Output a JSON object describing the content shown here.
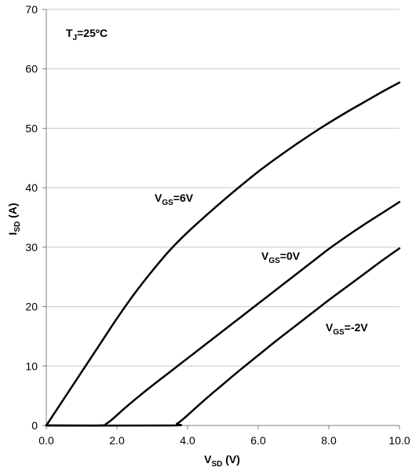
{
  "chart_data": {
    "type": "line",
    "xlabel": {
      "main": "V",
      "sub": "SD",
      "rest": " (V)"
    },
    "ylabel": {
      "main": "I",
      "sub": "SD",
      "rest": " (A)"
    },
    "xlim": [
      0,
      10
    ],
    "ylim": [
      0,
      70
    ],
    "x_ticks": [
      0,
      2,
      4,
      6,
      8,
      10
    ],
    "x_tick_labels": [
      "0.0",
      "2.0",
      "4.0",
      "6.0",
      "8.0",
      "10.0"
    ],
    "y_ticks": [
      0,
      10,
      20,
      30,
      40,
      50,
      60,
      70
    ],
    "y_tick_labels": [
      "0",
      "10",
      "20",
      "30",
      "40",
      "50",
      "60",
      "70"
    ],
    "grid": "horizontal",
    "annotations": [
      {
        "main": "T",
        "sub": "J",
        "rest": "=25ºC"
      }
    ],
    "series": [
      {
        "name": "VGS=6V",
        "label": {
          "main": "V",
          "sub": "GS",
          "rest": "=6V"
        },
        "x": [
          0,
          0.5,
          1,
          1.5,
          2,
          2.5,
          3,
          3.5,
          4,
          4.5,
          5,
          5.5,
          6,
          6.5,
          7,
          7.5,
          8,
          8.5,
          9,
          9.5,
          10
        ],
        "y": [
          0,
          4.5,
          9,
          13.5,
          18,
          22.2,
          26,
          29.5,
          32.5,
          35.2,
          37.8,
          40.3,
          42.7,
          44.9,
          47,
          49,
          50.9,
          52.7,
          54.4,
          56.1,
          57.7
        ]
      },
      {
        "name": "VGS=0V",
        "label": {
          "main": "V",
          "sub": "GS",
          "rest": "=0V"
        },
        "x": [
          0,
          1.5,
          1.7,
          1.9,
          2.2,
          2.6,
          3,
          3.5,
          4,
          4.5,
          5,
          5.5,
          6,
          6.5,
          7,
          7.5,
          8,
          8.5,
          9,
          9.5,
          10
        ],
        "y": [
          0,
          0,
          0.3,
          1.2,
          2.8,
          4.8,
          6.7,
          9,
          11.3,
          13.6,
          15.9,
          18.2,
          20.5,
          22.8,
          25.1,
          27.4,
          29.7,
          31.8,
          33.8,
          35.7,
          37.6
        ]
      },
      {
        "name": "VGS=-2V",
        "label": {
          "main": "V",
          "sub": "GS",
          "rest": "=-2V"
        },
        "x": [
          0,
          3.5,
          3.7,
          3.9,
          4.2,
          4.6,
          5,
          5.5,
          6,
          6.5,
          7,
          7.5,
          8,
          8.5,
          9,
          9.5,
          10
        ],
        "y": [
          0,
          0,
          0.3,
          1.2,
          2.8,
          4.9,
          6.9,
          9.4,
          11.8,
          14.2,
          16.5,
          18.8,
          21.1,
          23.3,
          25.5,
          27.7,
          29.8
        ]
      }
    ]
  }
}
